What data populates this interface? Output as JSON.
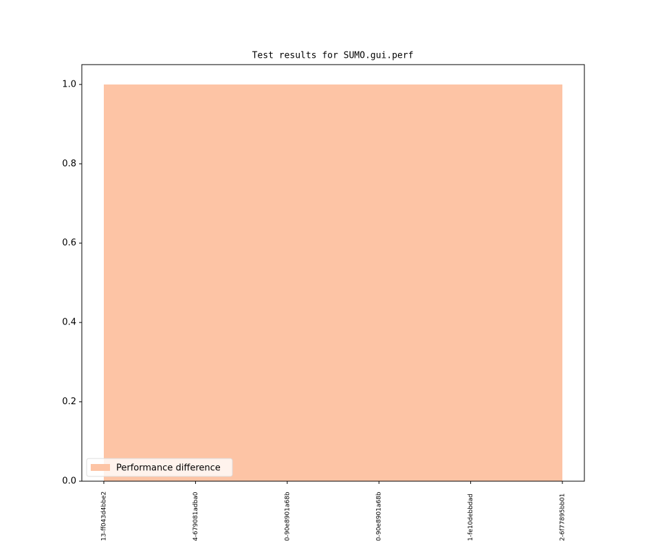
{
  "chart_data": {
    "type": "area",
    "title": "Test results for SUMO.gui.perf",
    "categories": [
      "13-ff043d4bbe2",
      "4-679081adba0",
      "0-90e8901a68b",
      "0-90e8901a68b",
      "1-fe10debbdad",
      "2-6f77895bb01"
    ],
    "series": [
      {
        "name": "Performance difference",
        "color": "#fdc4a5",
        "values": [
          1,
          1,
          1,
          1,
          1,
          1
        ]
      }
    ],
    "ylim": [
      0,
      1.05
    ],
    "yticks": [
      {
        "value": 0,
        "label": "0.0"
      },
      0.2,
      0.4,
      0.6,
      0.8,
      {
        "value": 1,
        "label": "1.0"
      }
    ],
    "legend": "lower left"
  }
}
